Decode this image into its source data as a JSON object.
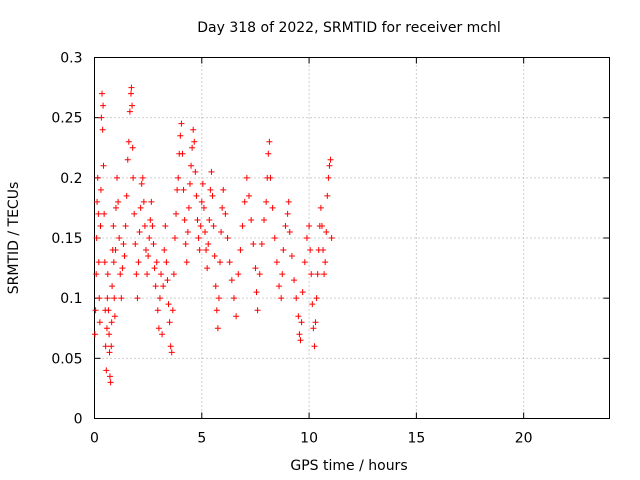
{
  "chart_data": {
    "type": "scatter",
    "title": "Day 318 of 2022, SRMTID for receiver mchl",
    "xlabel": "GPS time / hours",
    "ylabel": "SRMTID / TECUs",
    "xlim": [
      0,
      24
    ],
    "ylim": [
      0,
      0.3
    ],
    "xticks": [
      0,
      5,
      10,
      15,
      20
    ],
    "xtick_labels": [
      "0",
      "5",
      "10",
      "15",
      "20"
    ],
    "yticks": [
      0,
      0.05,
      0.1,
      0.15,
      0.2,
      0.25,
      0.3
    ],
    "ytick_labels": [
      "0",
      "0.05",
      "0.1",
      "0.15",
      "0.2",
      "0.25",
      "0.3"
    ],
    "grid": true,
    "marker": "+",
    "color": "#ff0000",
    "series": [
      {
        "name": "SRMTID",
        "points": [
          [
            0.02,
            0.07
          ],
          [
            0.05,
            0.09
          ],
          [
            0.08,
            0.12
          ],
          [
            0.1,
            0.15
          ],
          [
            0.12,
            0.18
          ],
          [
            0.15,
            0.2
          ],
          [
            0.18,
            0.17
          ],
          [
            0.2,
            0.13
          ],
          [
            0.22,
            0.1
          ],
          [
            0.25,
            0.08
          ],
          [
            0.28,
            0.16
          ],
          [
            0.3,
            0.19
          ],
          [
            0.32,
            0.25
          ],
          [
            0.35,
            0.27
          ],
          [
            0.38,
            0.24
          ],
          [
            0.4,
            0.26
          ],
          [
            0.42,
            0.21
          ],
          [
            0.45,
            0.17
          ],
          [
            0.48,
            0.13
          ],
          [
            0.5,
            0.09
          ],
          [
            0.52,
            0.06
          ],
          [
            0.55,
            0.04
          ],
          [
            0.58,
            0.075
          ],
          [
            0.6,
            0.1
          ],
          [
            0.62,
            0.12
          ],
          [
            0.65,
            0.09
          ],
          [
            0.68,
            0.07
          ],
          [
            0.7,
            0.055
          ],
          [
            0.72,
            0.035
          ],
          [
            0.75,
            0.03
          ],
          [
            0.78,
            0.06
          ],
          [
            0.8,
            0.08
          ],
          [
            0.82,
            0.11
          ],
          [
            0.85,
            0.14
          ],
          [
            0.88,
            0.16
          ],
          [
            0.9,
            0.13
          ],
          [
            0.92,
            0.1
          ],
          [
            0.95,
            0.085
          ],
          [
            0.98,
            0.14
          ],
          [
            1.0,
            0.175
          ],
          [
            1.05,
            0.2
          ],
          [
            1.1,
            0.18
          ],
          [
            1.15,
            0.15
          ],
          [
            1.2,
            0.12
          ],
          [
            1.25,
            0.1
          ],
          [
            1.3,
            0.125
          ],
          [
            1.35,
            0.145
          ],
          [
            1.4,
            0.135
          ],
          [
            1.45,
            0.16
          ],
          [
            1.5,
            0.185
          ],
          [
            1.55,
            0.215
          ],
          [
            1.6,
            0.23
          ],
          [
            1.65,
            0.255
          ],
          [
            1.7,
            0.27
          ],
          [
            1.72,
            0.275
          ],
          [
            1.75,
            0.26
          ],
          [
            1.78,
            0.225
          ],
          [
            1.8,
            0.2
          ],
          [
            1.85,
            0.17
          ],
          [
            1.9,
            0.145
          ],
          [
            1.95,
            0.12
          ],
          [
            2.0,
            0.1
          ],
          [
            2.05,
            0.13
          ],
          [
            2.1,
            0.155
          ],
          [
            2.15,
            0.175
          ],
          [
            2.2,
            0.195
          ],
          [
            2.25,
            0.2
          ],
          [
            2.3,
            0.18
          ],
          [
            2.35,
            0.16
          ],
          [
            2.4,
            0.14
          ],
          [
            2.45,
            0.12
          ],
          [
            2.5,
            0.135
          ],
          [
            2.55,
            0.15
          ],
          [
            2.6,
            0.165
          ],
          [
            2.65,
            0.18
          ],
          [
            2.7,
            0.16
          ],
          [
            2.75,
            0.145
          ],
          [
            2.8,
            0.125
          ],
          [
            2.85,
            0.11
          ],
          [
            2.9,
            0.13
          ],
          [
            2.95,
            0.09
          ],
          [
            3.0,
            0.075
          ],
          [
            3.05,
            0.1
          ],
          [
            3.1,
            0.12
          ],
          [
            3.15,
            0.07
          ],
          [
            3.2,
            0.11
          ],
          [
            3.25,
            0.14
          ],
          [
            3.3,
            0.16
          ],
          [
            3.35,
            0.13
          ],
          [
            3.4,
            0.115
          ],
          [
            3.45,
            0.095
          ],
          [
            3.5,
            0.08
          ],
          [
            3.55,
            0.06
          ],
          [
            3.6,
            0.055
          ],
          [
            3.65,
            0.09
          ],
          [
            3.7,
            0.12
          ],
          [
            3.75,
            0.15
          ],
          [
            3.8,
            0.17
          ],
          [
            3.85,
            0.19
          ],
          [
            3.9,
            0.2
          ],
          [
            3.95,
            0.22
          ],
          [
            4.0,
            0.235
          ],
          [
            4.05,
            0.245
          ],
          [
            4.1,
            0.22
          ],
          [
            4.15,
            0.19
          ],
          [
            4.2,
            0.165
          ],
          [
            4.25,
            0.145
          ],
          [
            4.3,
            0.13
          ],
          [
            4.35,
            0.155
          ],
          [
            4.4,
            0.175
          ],
          [
            4.45,
            0.195
          ],
          [
            4.5,
            0.21
          ],
          [
            4.55,
            0.225
          ],
          [
            4.6,
            0.24
          ],
          [
            4.65,
            0.23
          ],
          [
            4.7,
            0.205
          ],
          [
            4.75,
            0.185
          ],
          [
            4.8,
            0.165
          ],
          [
            4.85,
            0.15
          ],
          [
            4.9,
            0.14
          ],
          [
            4.95,
            0.16
          ],
          [
            5.0,
            0.18
          ],
          [
            5.05,
            0.195
          ],
          [
            5.1,
            0.175
          ],
          [
            5.15,
            0.155
          ],
          [
            5.2,
            0.14
          ],
          [
            5.25,
            0.125
          ],
          [
            5.3,
            0.145
          ],
          [
            5.35,
            0.165
          ],
          [
            5.4,
            0.19
          ],
          [
            5.45,
            0.205
          ],
          [
            5.5,
            0.185
          ],
          [
            5.55,
            0.16
          ],
          [
            5.6,
            0.135
          ],
          [
            5.65,
            0.11
          ],
          [
            5.7,
            0.09
          ],
          [
            5.75,
            0.075
          ],
          [
            5.8,
            0.1
          ],
          [
            5.85,
            0.13
          ],
          [
            5.9,
            0.155
          ],
          [
            5.95,
            0.175
          ],
          [
            6.0,
            0.19
          ],
          [
            6.1,
            0.17
          ],
          [
            6.2,
            0.15
          ],
          [
            6.3,
            0.13
          ],
          [
            6.4,
            0.115
          ],
          [
            6.5,
            0.1
          ],
          [
            6.6,
            0.085
          ],
          [
            6.7,
            0.12
          ],
          [
            6.8,
            0.14
          ],
          [
            6.9,
            0.16
          ],
          [
            7.0,
            0.18
          ],
          [
            7.1,
            0.2
          ],
          [
            7.2,
            0.185
          ],
          [
            7.3,
            0.165
          ],
          [
            7.4,
            0.145
          ],
          [
            7.5,
            0.125
          ],
          [
            7.55,
            0.105
          ],
          [
            7.6,
            0.09
          ],
          [
            7.7,
            0.12
          ],
          [
            7.8,
            0.145
          ],
          [
            7.9,
            0.165
          ],
          [
            8.0,
            0.18
          ],
          [
            8.05,
            0.2
          ],
          [
            8.1,
            0.22
          ],
          [
            8.15,
            0.23
          ],
          [
            8.2,
            0.2
          ],
          [
            8.3,
            0.175
          ],
          [
            8.4,
            0.15
          ],
          [
            8.5,
            0.13
          ],
          [
            8.6,
            0.11
          ],
          [
            8.7,
            0.1
          ],
          [
            8.75,
            0.12
          ],
          [
            8.8,
            0.14
          ],
          [
            8.9,
            0.16
          ],
          [
            9.0,
            0.17
          ],
          [
            9.05,
            0.18
          ],
          [
            9.1,
            0.155
          ],
          [
            9.2,
            0.135
          ],
          [
            9.3,
            0.115
          ],
          [
            9.4,
            0.1
          ],
          [
            9.5,
            0.085
          ],
          [
            9.55,
            0.07
          ],
          [
            9.6,
            0.065
          ],
          [
            9.65,
            0.08
          ],
          [
            9.7,
            0.105
          ],
          [
            9.8,
            0.13
          ],
          [
            9.9,
            0.15
          ],
          [
            10.0,
            0.16
          ],
          [
            10.05,
            0.14
          ],
          [
            10.1,
            0.12
          ],
          [
            10.15,
            0.095
          ],
          [
            10.2,
            0.075
          ],
          [
            10.25,
            0.06
          ],
          [
            10.3,
            0.08
          ],
          [
            10.35,
            0.1
          ],
          [
            10.4,
            0.12
          ],
          [
            10.45,
            0.14
          ],
          [
            10.5,
            0.16
          ],
          [
            10.55,
            0.175
          ],
          [
            10.6,
            0.16
          ],
          [
            10.65,
            0.14
          ],
          [
            10.7,
            0.12
          ],
          [
            10.75,
            0.13
          ],
          [
            10.8,
            0.155
          ],
          [
            10.85,
            0.185
          ],
          [
            10.9,
            0.2
          ],
          [
            10.95,
            0.21
          ],
          [
            11.0,
            0.215
          ],
          [
            11.05,
            0.15
          ]
        ]
      }
    ]
  }
}
